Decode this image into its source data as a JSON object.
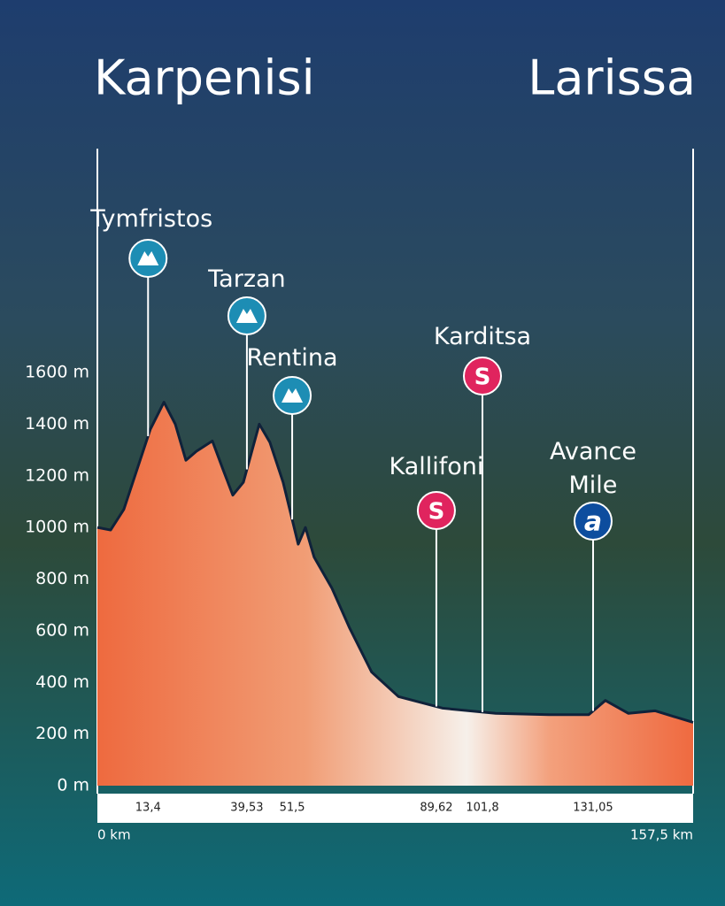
{
  "chart_data": {
    "type": "area",
    "title_start": "Karpenisi",
    "title_end": "Larissa",
    "xlim": [
      0,
      157.5
    ],
    "ylim": [
      0,
      1600
    ],
    "yticks": [
      {
        "value": 0,
        "label": "0 m"
      },
      {
        "value": 200,
        "label": "200 m"
      },
      {
        "value": 400,
        "label": "400 m"
      },
      {
        "value": 600,
        "label": "600 m"
      },
      {
        "value": 800,
        "label": "800 m"
      },
      {
        "value": 1000,
        "label": "1000 m"
      },
      {
        "value": 1200,
        "label": "1200 m"
      },
      {
        "value": 1400,
        "label": "1400 m"
      },
      {
        "value": 1600,
        "label": "1600 m"
      }
    ],
    "xticks": [
      {
        "value": 0,
        "label": "0 km"
      },
      {
        "value": 13.4,
        "label": "13,4"
      },
      {
        "value": 39.53,
        "label": "39,53"
      },
      {
        "value": 51.5,
        "label": "51,5"
      },
      {
        "value": 89.62,
        "label": "89,62"
      },
      {
        "value": 101.8,
        "label": "101,8"
      },
      {
        "value": 131.05,
        "label": "131,05"
      },
      {
        "value": 157.5,
        "label": "157,5 km"
      }
    ],
    "profile": {
      "km": [
        0,
        3.5,
        7,
        10.5,
        14,
        17.6,
        20.6,
        23.4,
        26.2,
        30.4,
        33.2,
        35.8,
        38.6,
        42.8,
        45.6,
        49.1,
        53.1,
        55,
        57.3,
        62,
        66.7,
        72.5,
        79.6,
        91.3,
        105.3,
        119.4,
        129.9,
        134.3,
        140.4,
        147.4,
        157.5
      ],
      "elevation": [
        1000,
        990,
        1070,
        1225,
        1380,
        1485,
        1400,
        1260,
        1295,
        1335,
        1225,
        1125,
        1175,
        1400,
        1330,
        1175,
        935,
        1000,
        885,
        765,
        610,
        440,
        345,
        300,
        280,
        275,
        275,
        330,
        280,
        290,
        245
      ]
    },
    "points": [
      {
        "name": "Tymfristos",
        "km": 13.4,
        "kind": "mountain",
        "color": "#1d8db4"
      },
      {
        "name": "Tarzan",
        "km": 39.53,
        "kind": "mountain",
        "color": "#1d8db4"
      },
      {
        "name": "Rentina",
        "km": 51.5,
        "kind": "mountain",
        "color": "#1d8db4"
      },
      {
        "name": "Kallifoni",
        "km": 89.62,
        "kind": "sprint",
        "icon": "S",
        "color": "#e0245e"
      },
      {
        "name": "Karditsa",
        "km": 101.8,
        "kind": "sprint",
        "icon": "S",
        "color": "#e0245e"
      },
      {
        "name": "Avance Mile",
        "km": 131.05,
        "kind": "avance",
        "icon": "a",
        "color": "#0d4d9e"
      }
    ]
  }
}
